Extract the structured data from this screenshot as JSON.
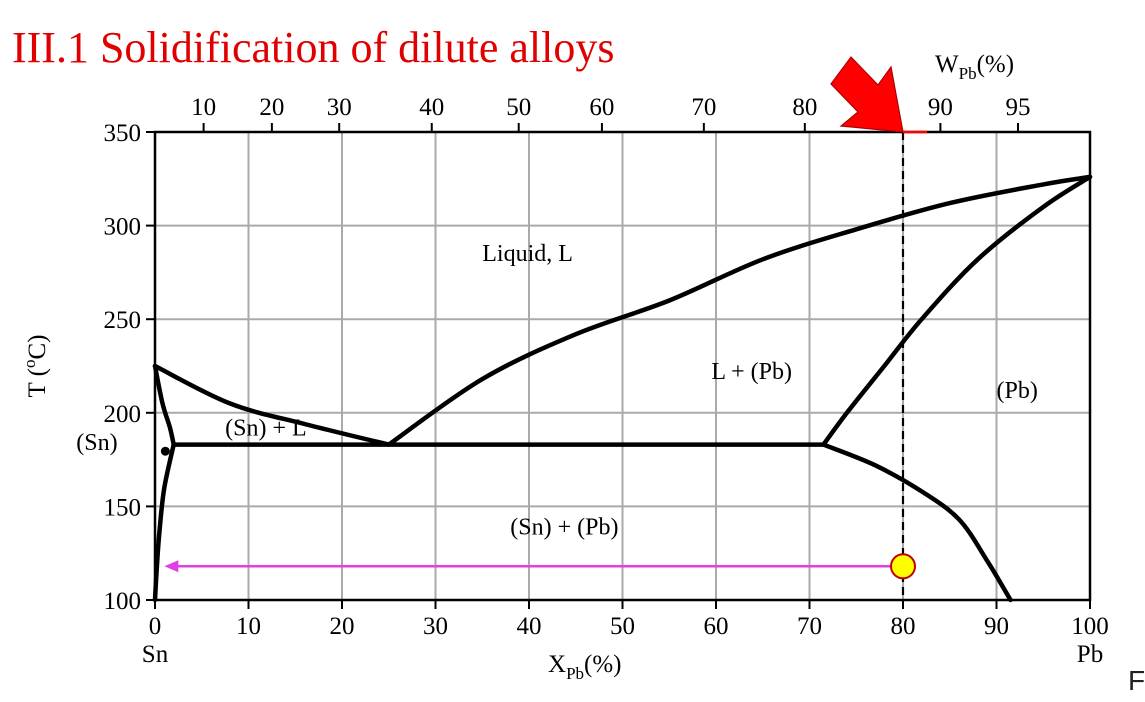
{
  "slide": {
    "title": "III.1 Solidification of dilute alloys",
    "corner_glyph": "F"
  },
  "chart_data": {
    "type": "phase-diagram",
    "x_axis": {
      "label_main": "X",
      "label_sub": "Pb",
      "label_unit": "(%)",
      "range": [
        0,
        100
      ],
      "ticks": [
        0,
        10,
        20,
        30,
        40,
        50,
        60,
        70,
        80,
        90,
        100
      ],
      "end_labels": {
        "left": "Sn",
        "right": "Pb"
      }
    },
    "top_axis": {
      "label_main": "W",
      "label_sub": "Pb",
      "label_unit": "(%)",
      "ticks": [
        {
          "w": 10,
          "x": 5.2
        },
        {
          "w": 20,
          "x": 12.5
        },
        {
          "w": 30,
          "x": 19.7
        },
        {
          "w": 40,
          "x": 29.6
        },
        {
          "w": 50,
          "x": 38.9
        },
        {
          "w": 60,
          "x": 47.8
        },
        {
          "w": 70,
          "x": 58.7
        },
        {
          "w": 80,
          "x": 69.5
        },
        {
          "w": 90,
          "x": 84.0
        },
        {
          "w": 95,
          "x": 92.3
        }
      ]
    },
    "y_axis": {
      "label_main": "T (",
      "label_sup": "o",
      "label_end": "C)",
      "range": [
        100,
        350
      ],
      "ticks": [
        100,
        150,
        200,
        250,
        300,
        350
      ]
    },
    "grid": true,
    "eutectic_T": 183,
    "curves": {
      "liquidus_left": [
        [
          0,
          225
        ],
        [
          8,
          205
        ],
        [
          16,
          194
        ],
        [
          25,
          183
        ]
      ],
      "liquidus_right": [
        [
          25,
          183
        ],
        [
          35,
          218
        ],
        [
          45,
          242
        ],
        [
          55,
          260
        ],
        [
          65,
          282
        ],
        [
          75,
          298
        ],
        [
          85,
          312
        ],
        [
          95,
          322
        ],
        [
          100,
          326
        ]
      ],
      "eutectic_line": [
        [
          2,
          183
        ],
        [
          71.5,
          183
        ]
      ],
      "solidus_pb": [
        [
          71.5,
          183
        ],
        [
          74,
          200
        ],
        [
          78,
          225
        ],
        [
          82,
          250
        ],
        [
          88,
          282
        ],
        [
          95,
          310
        ],
        [
          100,
          326
        ]
      ],
      "solvus_pb": [
        [
          71.5,
          183
        ],
        [
          77,
          172
        ],
        [
          82,
          158
        ],
        [
          86,
          143
        ],
        [
          89,
          121
        ],
        [
          91.5,
          100
        ]
      ],
      "solidus_sn": [
        [
          0,
          225
        ],
        [
          0.8,
          205
        ],
        [
          1.6,
          192
        ],
        [
          2,
          183
        ]
      ],
      "solvus_sn": [
        [
          2,
          183
        ],
        [
          1,
          160
        ],
        [
          0.5,
          138
        ],
        [
          0.2,
          118
        ],
        [
          0,
          100
        ]
      ]
    },
    "regions": [
      {
        "label": "Liquid, L",
        "x": 35,
        "y": 281
      },
      {
        "label": "L + (Pb)",
        "x": 59.5,
        "y": 218
      },
      {
        "label": "(Pb)",
        "x": 90,
        "y": 208
      },
      {
        "label": "(Sn) + L",
        "x": 7.5,
        "y": 188
      },
      {
        "label": "(Sn) + (Pb)",
        "x": 38,
        "y": 135
      },
      {
        "label": "(Sn)",
        "x": -4,
        "y": 180
      }
    ],
    "composition_line": {
      "x": 80,
      "from_T": 350,
      "to_T": 100,
      "color": "#000000",
      "style": "dashed"
    },
    "marker": {
      "x": 80,
      "T": 118,
      "fill": "#ffff00",
      "stroke": "#c00000"
    },
    "arrow": {
      "from_x": 80,
      "to_x": 1,
      "T": 118,
      "color": "#e040e0"
    },
    "sn_point": {
      "x": 1,
      "T": 180
    },
    "pointer": {
      "x": 80,
      "T": 350,
      "color": "#ff0000"
    }
  }
}
